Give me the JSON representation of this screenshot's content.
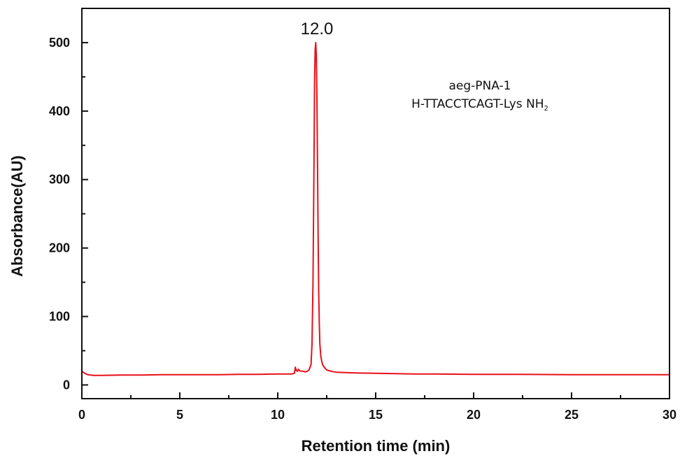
{
  "chart_data": {
    "type": "line",
    "xlabel": "Retention time (min)",
    "ylabel": "Absorbance(AU)",
    "xlim": [
      0,
      30
    ],
    "ylim": [
      -20,
      550
    ],
    "x_ticks": [
      0,
      5,
      10,
      15,
      20,
      25,
      30
    ],
    "x_tick_labels": [
      "0",
      "5",
      "10",
      "15",
      "20",
      "25",
      "30"
    ],
    "y_ticks": [
      0,
      100,
      200,
      300,
      400,
      500
    ],
    "y_tick_labels": [
      "0",
      "100",
      "200",
      "300",
      "400",
      "500"
    ],
    "grid": false,
    "series": [
      {
        "color": "#e8101a",
        "x": [
          0,
          0.05,
          0.15,
          0.3,
          0.6,
          1,
          2,
          3,
          4,
          5,
          6,
          7,
          8,
          9,
          10,
          10.7,
          10.85,
          10.9,
          10.95,
          11.0,
          11.05,
          11.1,
          11.2,
          11.3,
          11.4,
          11.5,
          11.6,
          11.7,
          11.75,
          11.8,
          11.85,
          11.88,
          11.91,
          11.94,
          11.97,
          12.0,
          12.03,
          12.06,
          12.09,
          12.12,
          12.15,
          12.2,
          12.25,
          12.3,
          12.4,
          12.5,
          12.6,
          12.8,
          13.0,
          13.5,
          14,
          15,
          16,
          17,
          18,
          20,
          22,
          25,
          28,
          30
        ],
        "y": [
          20,
          19,
          17,
          15,
          14,
          14,
          14.5,
          14.5,
          15,
          15,
          15,
          15,
          15.5,
          15.5,
          16,
          16,
          17,
          26,
          21,
          20,
          23,
          21,
          20,
          20,
          19,
          20,
          22,
          30,
          60,
          150,
          320,
          440,
          490,
          500,
          480,
          420,
          330,
          220,
          140,
          90,
          60,
          42,
          34,
          29,
          25,
          22,
          21,
          19.5,
          18.5,
          18,
          17.5,
          17,
          16.5,
          16,
          16,
          15.5,
          15.5,
          15,
          15,
          15
        ]
      }
    ],
    "annotations": {
      "peak_label": "12.0",
      "peak_x": 12.0,
      "peak_y": 500,
      "compound_name": "aeg-PNA-1",
      "sequence": "H-TTACCTCAGT-Lys NH",
      "sequence_subscript": "2"
    }
  }
}
